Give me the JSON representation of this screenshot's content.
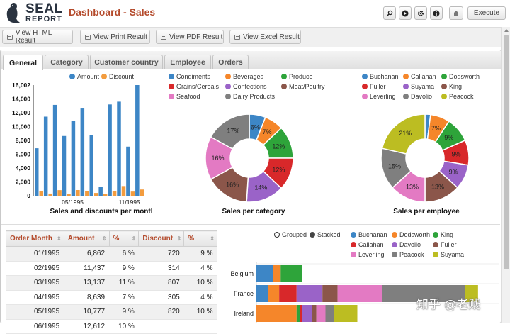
{
  "app": {
    "logo_top": "SEAL",
    "logo_bottom": "REPORT",
    "title": "Dashboard - Sales",
    "execute_label": "Execute"
  },
  "toolbar_icons": [
    "zoom-icon",
    "play-icon",
    "gear-icon",
    "info-icon",
    "home-icon"
  ],
  "view_buttons": [
    "View HTML Result",
    "View Print Result",
    "View PDF Result",
    "View Excel Result"
  ],
  "tabs": [
    "General",
    "Category",
    "Customer country",
    "Employee",
    "Orders"
  ],
  "active_tab": "General",
  "colors": {
    "accent": "#b44a2b",
    "amount": "#3d86c6",
    "discount": "#f39c3e"
  },
  "bar_chart": {
    "title": "Sales and discounts per montl",
    "legend": [
      "Amount",
      "Discount"
    ],
    "y_ticks": [
      "16,002",
      "14,000",
      "12,000",
      "10,000",
      "8,000",
      "6,000",
      "4,000",
      "2,000",
      "0"
    ],
    "x_ticks": [
      "05/1995",
      "11/1995"
    ]
  },
  "category_legend": [
    "Condiments",
    "Beverages",
    "Produce",
    "Grains/Cereals",
    "Confections",
    "Meat/Poultry",
    "Seafood",
    "Dairy Products"
  ],
  "category_pie_title": "Sales per category",
  "employee_legend": [
    "Buchanan",
    "Callahan",
    "Dodsworth",
    "Fuller",
    "Suyama",
    "King",
    "Leverling",
    "Davolio",
    "Peacock"
  ],
  "employee_pie_title": "Sales per employee",
  "chart_data": [
    {
      "type": "bar",
      "title": "Sales and discounts per montl",
      "ylim": [
        0,
        16002
      ],
      "x_ticks": [
        "05/1995",
        "11/1995"
      ],
      "series": [
        {
          "name": "Amount",
          "color": "#3d86c6",
          "values": [
            6862,
            11437,
            13137,
            8639,
            10777,
            12612,
            8800,
            1300,
            13200,
            13600,
            7100,
            16002
          ]
        },
        {
          "name": "Discount",
          "color": "#f39c3e",
          "values": [
            720,
            314,
            807,
            305,
            820,
            650,
            400,
            120,
            650,
            1400,
            600,
            900
          ]
        }
      ]
    },
    {
      "type": "pie",
      "title": "Sales per category",
      "slices": [
        {
          "name": "Condiments",
          "value": 6,
          "label": "6%",
          "color": "#3d86c6"
        },
        {
          "name": "Beverages",
          "value": 7,
          "label": "7%",
          "color": "#f5862a"
        },
        {
          "name": "Produce",
          "value": 12,
          "label": "12%",
          "color": "#2ea43a"
        },
        {
          "name": "Grains/Cereals",
          "value": 12,
          "label": "12%",
          "color": "#d8282a"
        },
        {
          "name": "Confections",
          "value": 14,
          "label": "14%",
          "color": "#9a63c8"
        },
        {
          "name": "Meat/Poultry",
          "value": 16,
          "label": "16%",
          "color": "#8b564a"
        },
        {
          "name": "Seafood",
          "value": 16,
          "label": "16%",
          "color": "#e37ac3"
        },
        {
          "name": "Dairy Products",
          "value": 17,
          "label": "17%",
          "color": "#7f7f7f"
        }
      ]
    },
    {
      "type": "pie",
      "title": "Sales per employee",
      "slices": [
        {
          "name": "Buchanan",
          "value": 2,
          "label": "",
          "color": "#3d86c6"
        },
        {
          "name": "Callahan",
          "value": 7,
          "label": "7%",
          "color": "#f5862a"
        },
        {
          "name": "Dodsworth",
          "value": 9,
          "label": "9%",
          "color": "#2ea43a"
        },
        {
          "name": "Fuller",
          "value": 9,
          "label": "9%",
          "color": "#d8282a"
        },
        {
          "name": "Suyama",
          "value": 9,
          "label": "9%",
          "color": "#9a63c8"
        },
        {
          "name": "King",
          "value": 13,
          "label": "13%",
          "color": "#8b564a"
        },
        {
          "name": "Leverling",
          "value": 13,
          "label": "13%",
          "color": "#e37ac3"
        },
        {
          "name": "Davolio",
          "value": 15,
          "label": "15%",
          "color": "#7f7f7f"
        },
        {
          "name": "Peacock",
          "value": 21,
          "label": "21%",
          "color": "#bcbd22"
        }
      ]
    },
    {
      "type": "bar",
      "orientation": "horizontal-stacked",
      "categories": [
        "Belgium",
        "France",
        "Ireland"
      ],
      "series": [
        {
          "name": "Buchanan",
          "color": "#3d86c6",
          "values": [
            2200,
            1500,
            0
          ]
        },
        {
          "name": "Dodsworth",
          "color": "#f5862a",
          "values": [
            1000,
            1500,
            5300
          ]
        },
        {
          "name": "King",
          "color": "#2ea43a",
          "values": [
            2800,
            0,
            400
          ]
        },
        {
          "name": "Callahan",
          "color": "#d8282a",
          "values": [
            0,
            2300,
            300
          ]
        },
        {
          "name": "Davolio",
          "color": "#9a63c8",
          "values": [
            0,
            3400,
            1300
          ]
        },
        {
          "name": "Fuller",
          "color": "#8b564a",
          "values": [
            0,
            2000,
            600
          ]
        },
        {
          "name": "Leverling",
          "color": "#e37ac3",
          "values": [
            0,
            5900,
            1200
          ]
        },
        {
          "name": "Peacock",
          "color": "#7f7f7f",
          "values": [
            0,
            10900,
            1100
          ]
        },
        {
          "name": "Suyama",
          "color": "#bcbd22",
          "values": [
            0,
            1700,
            3100
          ]
        }
      ]
    }
  ],
  "stacked_controls": {
    "grouped": "Grouped",
    "stacked": "Stacked"
  },
  "stacked_legend": [
    "Buchanan",
    "Dodsworth",
    "King",
    "Callahan",
    "Davolio",
    "Fuller",
    "Leverling",
    "Peacock",
    "Suyama"
  ],
  "order_table": {
    "headers": [
      "Order Month",
      "Amount",
      "%",
      "Discount",
      "%"
    ],
    "rows": [
      [
        "01/1995",
        "6,862",
        "6 %",
        "720",
        "9 %"
      ],
      [
        "02/1995",
        "11,437",
        "9 %",
        "314",
        "4 %"
      ],
      [
        "03/1995",
        "13,137",
        "11 %",
        "807",
        "10 %"
      ],
      [
        "04/1995",
        "8,639",
        "7 %",
        "305",
        "4 %"
      ],
      [
        "05/1995",
        "10,777",
        "9 %",
        "820",
        "10 %"
      ],
      [
        "06/1995",
        "12,612",
        "10 %",
        "",
        ""
      ]
    ]
  },
  "watermark": "知乎 @老贱"
}
